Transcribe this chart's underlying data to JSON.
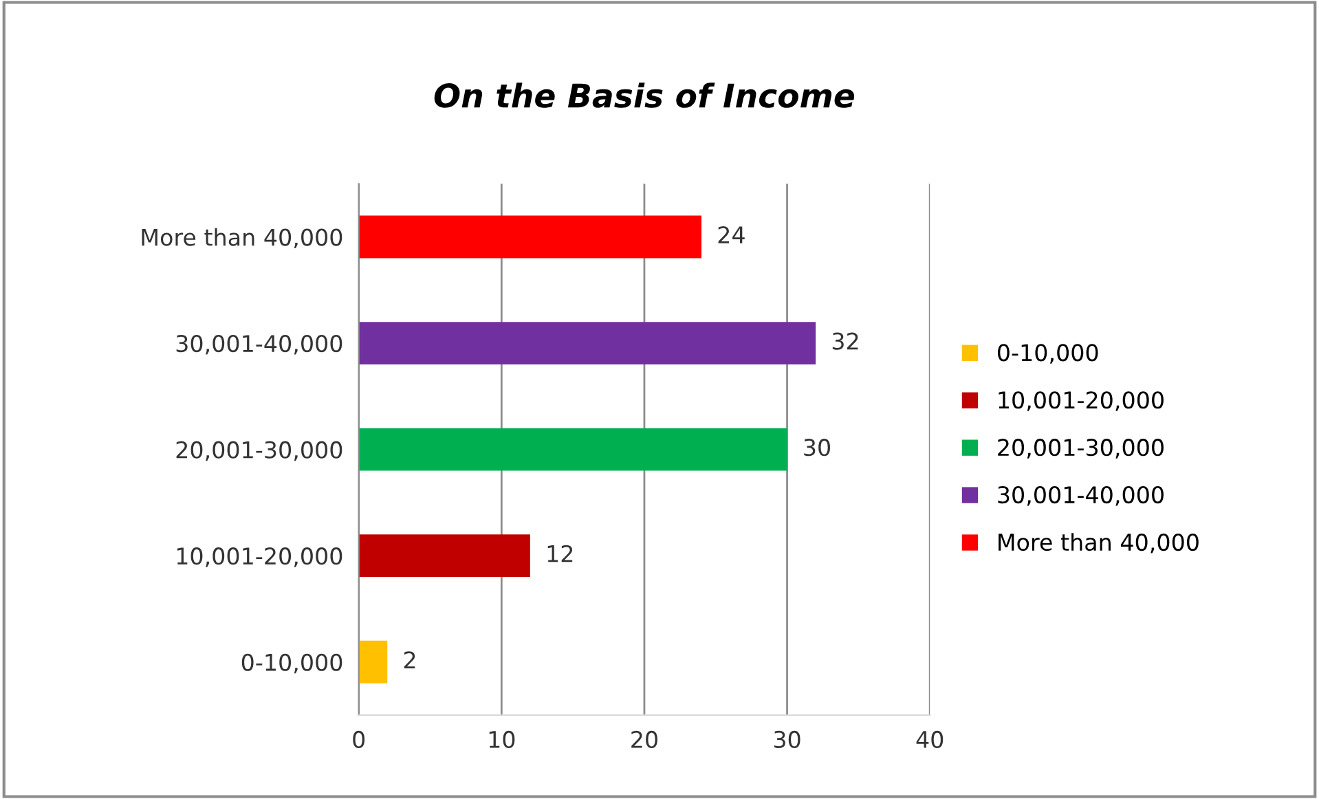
{
  "chart_data": {
    "type": "bar",
    "orientation": "horizontal",
    "stacked": true,
    "title": "On the Basis of Income",
    "categories": [
      "More than 40,000",
      "30,001-40,000",
      "20,001-30,000",
      "10,001-20,000",
      "0-10,000"
    ],
    "series": [
      {
        "name": "0-10,000",
        "color": "#ffc000",
        "values": [
          null,
          null,
          null,
          null,
          2
        ]
      },
      {
        "name": "10,001-20,000",
        "color": "#c00000",
        "values": [
          null,
          null,
          null,
          12,
          null
        ]
      },
      {
        "name": "20,001-30,000",
        "color": "#00b050",
        "values": [
          null,
          null,
          30,
          null,
          null
        ]
      },
      {
        "name": "30,001-40,000",
        "color": "#7030a0",
        "values": [
          null,
          32,
          null,
          null,
          null
        ]
      },
      {
        "name": "More than 40,000",
        "color": "#ff0000",
        "values": [
          24,
          null,
          null,
          null,
          null
        ]
      }
    ],
    "xlim": [
      0,
      40
    ],
    "xticks": [
      0,
      10,
      20,
      30,
      40
    ],
    "grid": "x",
    "data_labels": true,
    "legend": "right"
  }
}
